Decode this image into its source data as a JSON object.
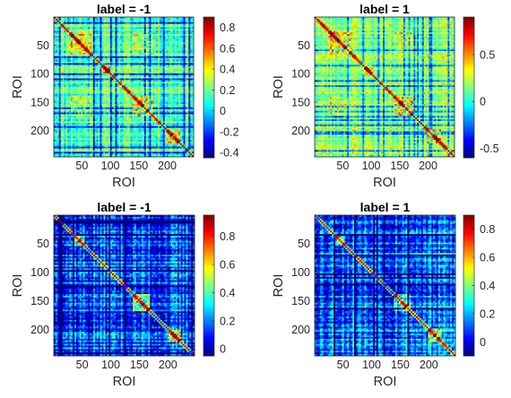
{
  "figure": {
    "panels": [
      {
        "title": "label = -1",
        "xlabel": "ROI",
        "ylabel": "ROI"
      },
      {
        "title": "label = 1",
        "xlabel": "ROI",
        "ylabel": "ROI"
      },
      {
        "title": "label = -1",
        "xlabel": "ROI",
        "ylabel": "ROI"
      },
      {
        "title": "label = 1",
        "xlabel": "ROI",
        "ylabel": "ROI"
      }
    ]
  },
  "colormap": "jet",
  "chart_data": [
    {
      "type": "heatmap",
      "title": "label = -1",
      "xlabel": "ROI",
      "ylabel": "ROI",
      "n_rois": 246,
      "x_ticks": [
        50,
        100,
        150,
        200
      ],
      "y_ticks": [
        50,
        100,
        150,
        200
      ],
      "diagonal_value": 0.9,
      "clim": [
        -0.45,
        0.9
      ],
      "colorbar_ticks": [
        -0.4,
        -0.2,
        0,
        0.2,
        0.4,
        0.6,
        0.8
      ],
      "colorbar_tick_labels": [
        "-0.4",
        "-0.2",
        "0",
        "0.2",
        "0.4",
        "0.6",
        "0.8"
      ]
    },
    {
      "type": "heatmap",
      "title": "label = 1",
      "xlabel": "ROI",
      "ylabel": "ROI",
      "n_rois": 246,
      "x_ticks": [
        50,
        100,
        150,
        200
      ],
      "y_ticks": [
        50,
        100,
        150,
        200
      ],
      "diagonal_value": 0.9,
      "clim": [
        -0.6,
        0.9
      ],
      "colorbar_ticks": [
        -0.5,
        0,
        0.5
      ],
      "colorbar_tick_labels": [
        "-0.5",
        "0",
        "0.5"
      ]
    },
    {
      "type": "heatmap",
      "title": "label = -1",
      "xlabel": "ROI",
      "ylabel": "ROI",
      "n_rois": 246,
      "x_ticks": [
        50,
        100,
        150,
        200
      ],
      "y_ticks": [
        50,
        100,
        150,
        200
      ],
      "diagonal_value": 0.9,
      "clim": [
        -0.05,
        0.95
      ],
      "colorbar_ticks": [
        0,
        0.2,
        0.4,
        0.6,
        0.8
      ],
      "colorbar_tick_labels": [
        "0",
        "0.2",
        "0.4",
        "0.6",
        "0.8"
      ]
    },
    {
      "type": "heatmap",
      "title": "label = 1",
      "xlabel": "ROI",
      "ylabel": "ROI",
      "n_rois": 246,
      "x_ticks": [
        50,
        100,
        150,
        200
      ],
      "y_ticks": [
        50,
        100,
        150,
        200
      ],
      "diagonal_value": 0.85,
      "clim": [
        -0.1,
        0.9
      ],
      "colorbar_ticks": [
        0,
        0.2,
        0.4,
        0.6,
        0.8
      ],
      "colorbar_tick_labels": [
        "0",
        "0.2",
        "0.4",
        "0.6",
        "0.8"
      ]
    }
  ]
}
